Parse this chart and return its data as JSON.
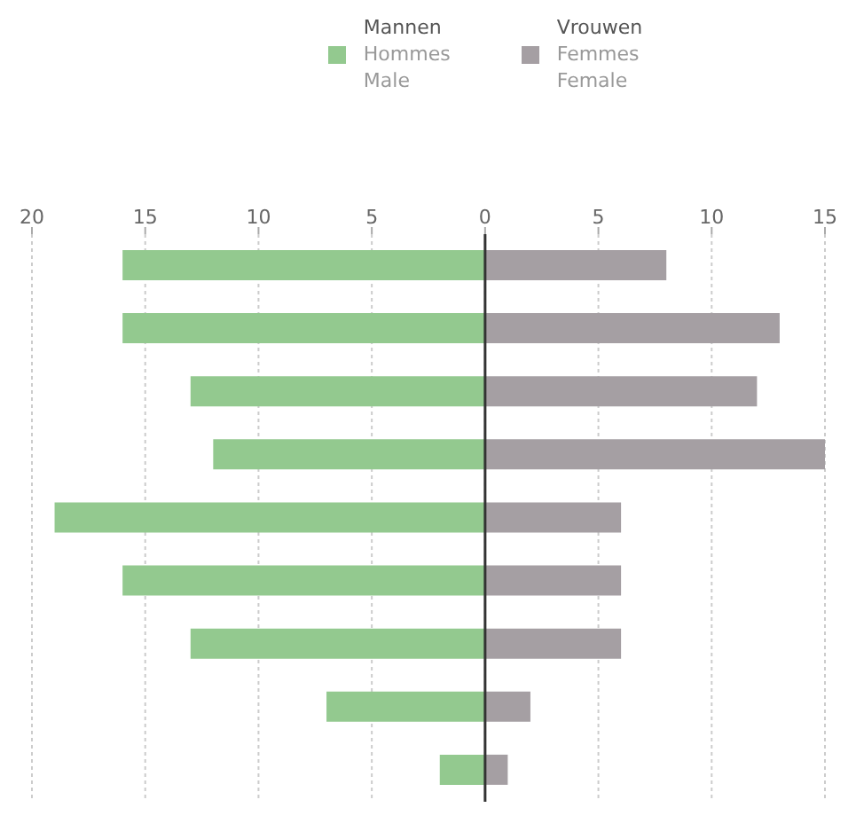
{
  "chart_data": {
    "type": "bar",
    "orientation": "horizontal",
    "stacked": true,
    "categories": [
      null,
      null,
      null,
      null,
      null,
      null,
      null,
      null,
      null
    ],
    "series": [
      {
        "name": "Mannen\nHommes\nMale",
        "color": "#93c98f",
        "values": [
          -16,
          -16,
          -13,
          -12,
          -19,
          -16,
          -13,
          -7,
          -2
        ]
      },
      {
        "name": "Vrouwen\nFemmes\nFemale",
        "color": "#a59fa3",
        "values": [
          8,
          13,
          12,
          15,
          6,
          6,
          6,
          2,
          1
        ]
      }
    ],
    "xlim": [
      -20,
      15
    ],
    "xticks": [
      {
        "value": -20,
        "label": "20"
      },
      {
        "value": -15,
        "label": "15"
      },
      {
        "value": -10,
        "label": "10"
      },
      {
        "value": -5,
        "label": "5"
      },
      0,
      5,
      10,
      15
    ],
    "grid": "x",
    "legend": "top"
  }
}
